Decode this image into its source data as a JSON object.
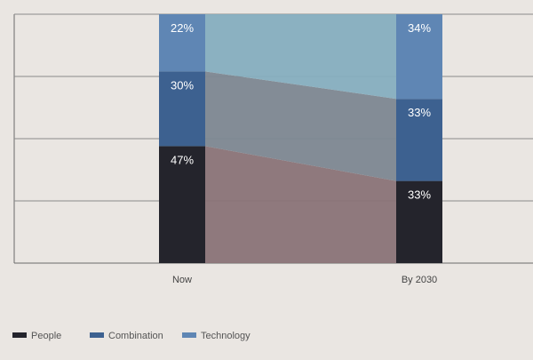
{
  "chart_data": {
    "type": "bar",
    "stacked": true,
    "percent": true,
    "categories": [
      "Now",
      "By 2030"
    ],
    "series": [
      {
        "name": "People",
        "values": [
          47,
          33
        ],
        "color": "#24242c"
      },
      {
        "name": "Combination",
        "values": [
          30,
          33
        ],
        "color": "#3d6190"
      },
      {
        "name": "Technology",
        "values": [
          22,
          34
        ],
        "color": "#5f86b4"
      }
    ],
    "value_labels": [
      [
        "47%",
        "33%"
      ],
      [
        "30%",
        "33%"
      ],
      [
        "22%",
        "34%"
      ]
    ],
    "connector_colors": [
      "#8a7377",
      "#7d8791",
      "#86aebf"
    ],
    "ylim": [
      0,
      100
    ],
    "grid": true,
    "legend_position": "bottom-left",
    "xlabel": "",
    "ylabel": ""
  }
}
